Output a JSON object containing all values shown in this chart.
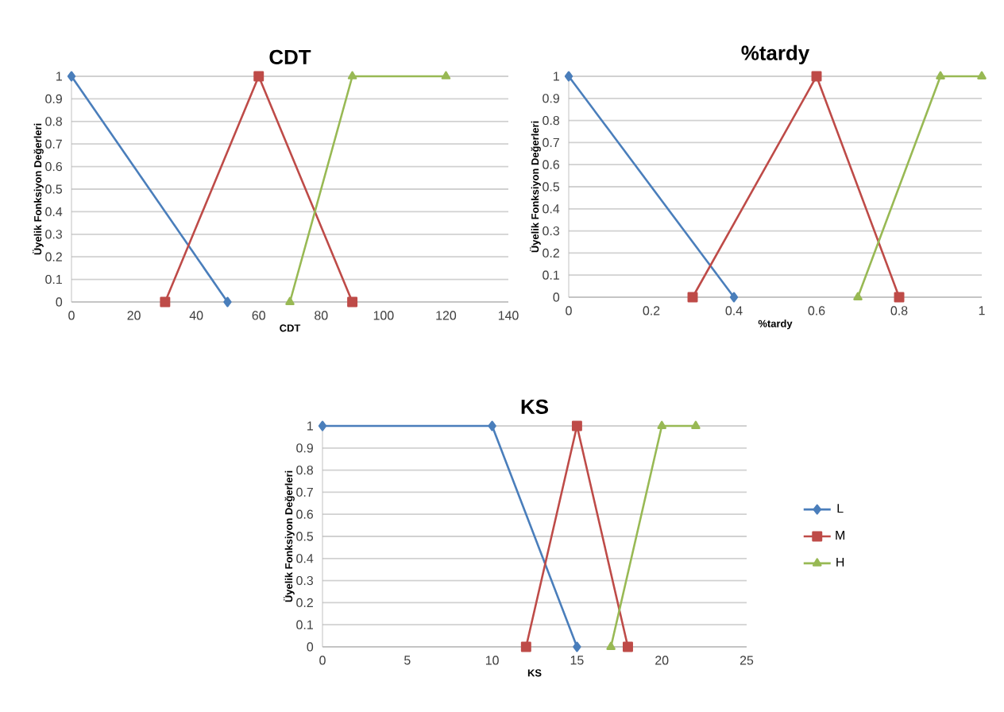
{
  "chart_data": [
    {
      "type": "line",
      "title": "CDT",
      "xlabel": "CDT",
      "ylabel": "Üyelik Fonksiyon Değerleri",
      "xlim": [
        0,
        140
      ],
      "ylim": [
        0,
        1
      ],
      "xticks": [
        0,
        20,
        40,
        60,
        80,
        100,
        120,
        140
      ],
      "yticks": [
        0,
        0.1,
        0.2,
        0.3,
        0.4,
        0.5,
        0.6,
        0.7,
        0.8,
        0.9,
        1
      ],
      "grid": "y",
      "series": [
        {
          "color": "#4a7ebb",
          "marker": "diamond",
          "x": [
            0,
            50
          ],
          "values": [
            1,
            0
          ]
        },
        {
          "color": "#be4b48",
          "marker": "square",
          "x": [
            30,
            60,
            90
          ],
          "values": [
            0,
            1,
            0
          ]
        },
        {
          "color": "#98b954",
          "marker": "triangle",
          "x": [
            70,
            90,
            120
          ],
          "values": [
            0,
            1,
            1
          ]
        }
      ]
    },
    {
      "type": "line",
      "title": "%tardy",
      "xlabel": "%tardy",
      "ylabel": "Üyelik Fonksiyon Değerleri",
      "xlim": [
        0,
        1
      ],
      "ylim": [
        0,
        1
      ],
      "xticks": [
        0,
        0.2,
        0.4,
        0.6,
        0.8,
        1
      ],
      "yticks": [
        0,
        0.1,
        0.2,
        0.3,
        0.4,
        0.5,
        0.6,
        0.7,
        0.8,
        0.9,
        1
      ],
      "grid": "y",
      "series": [
        {
          "color": "#4a7ebb",
          "marker": "diamond",
          "x": [
            0,
            0.4
          ],
          "values": [
            1,
            0
          ]
        },
        {
          "color": "#be4b48",
          "marker": "square",
          "x": [
            0.3,
            0.6,
            0.8
          ],
          "values": [
            0,
            1,
            0
          ]
        },
        {
          "color": "#98b954",
          "marker": "triangle",
          "x": [
            0.7,
            0.9,
            1
          ],
          "values": [
            0,
            1,
            1
          ]
        }
      ]
    },
    {
      "type": "line",
      "title": "KS",
      "xlabel": "KS",
      "ylabel": "Üyelik Fonksiyon Değerleri",
      "xlim": [
        0,
        25
      ],
      "ylim": [
        0,
        1
      ],
      "xticks": [
        0,
        5,
        10,
        15,
        20,
        25
      ],
      "yticks": [
        0,
        0.1,
        0.2,
        0.3,
        0.4,
        0.5,
        0.6,
        0.7,
        0.8,
        0.9,
        1
      ],
      "grid": "y",
      "legend": "right",
      "series": [
        {
          "name": "L",
          "color": "#4a7ebb",
          "marker": "diamond",
          "x": [
            0,
            10,
            15
          ],
          "values": [
            1,
            1,
            0
          ]
        },
        {
          "name": "M",
          "color": "#be4b48",
          "marker": "square",
          "x": [
            12,
            15,
            18
          ],
          "values": [
            0,
            1,
            0
          ]
        },
        {
          "name": "H",
          "color": "#98b954",
          "marker": "triangle",
          "x": [
            17,
            20,
            22
          ],
          "values": [
            0,
            1,
            1
          ]
        }
      ]
    }
  ]
}
